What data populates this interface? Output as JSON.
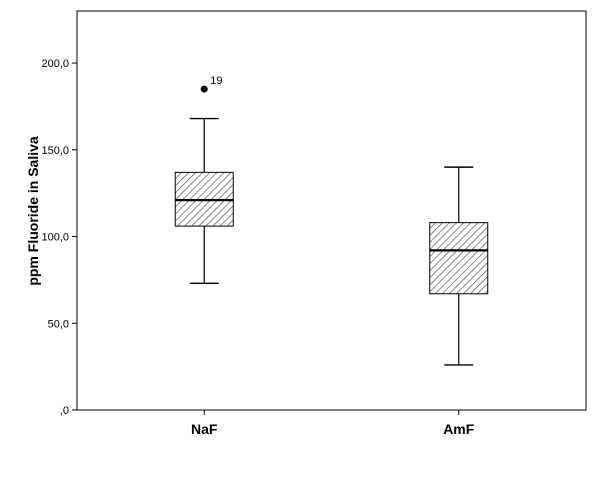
{
  "chart_data": {
    "type": "boxplot",
    "ylabel": "ppm Fluoride in Saliva",
    "ylim": [
      0,
      230
    ],
    "yticks": [
      {
        "value": 0,
        "label": ",0"
      },
      {
        "value": 50,
        "label": "50,0"
      },
      {
        "value": 100,
        "label": "100,0"
      },
      {
        "value": 150,
        "label": "150,0"
      },
      {
        "value": 200,
        "label": "200,0"
      }
    ],
    "grid": false,
    "boxes": [
      {
        "category": "NaF",
        "whisker_low": 73,
        "q1": 106,
        "median": 121,
        "q3": 137,
        "whisker_high": 168,
        "outliers": [
          {
            "value": 185,
            "label": "19"
          }
        ]
      },
      {
        "category": "AmF",
        "whisker_low": 26,
        "q1": 67,
        "median": 92,
        "q3": 108,
        "whisker_high": 140,
        "outliers": []
      }
    ],
    "box_fill": "diagonal-hatch",
    "colors": {
      "stroke": "#000000",
      "hatch": "#555555",
      "box_background": "#ffffff"
    }
  }
}
